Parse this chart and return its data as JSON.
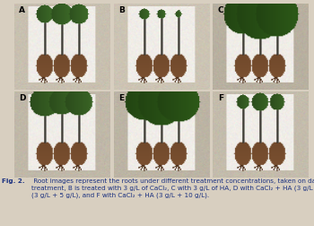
{
  "figure_title": "Fig. 2.",
  "caption": " Root images represent the roots under different treatment concentrations, taken on day 21. A is the control with no\ntreatment, B is treated with 3 g/L of CaCl₂, C with 3 g/L of HA, D with CaCl₂ + HA (3 g/L + 2g/L), E with CaCl₂ + HA\n(3 g/L + 5 g/L), and F with CaCl₂ + HA (3 g/L + 10 g/L).",
  "bg_color": "#d8cfc0",
  "panel_bg": "#e8e4dc",
  "inner_bg": "#f0ede8",
  "caption_color": "#1a3080",
  "caption_fontsize": 5.2,
  "label_fontsize": 6.5,
  "panel_labels": [
    "A",
    "B",
    "C",
    "D",
    "E",
    "F"
  ],
  "stem_color": "#2a2820",
  "root_color": "#7a5030",
  "root_dark": "#5a3820",
  "leaf_colors": [
    "#3d6b28",
    "#3d6b28",
    "#2d5a18",
    "#3a6525",
    "#2d5a18",
    "#3a6525"
  ],
  "panel_outer_colors": [
    "#c8c0b0",
    "#ccc4b4",
    "#b8b0a0",
    "#c0b8a8",
    "#bcb4a4",
    "#c4bcac"
  ]
}
